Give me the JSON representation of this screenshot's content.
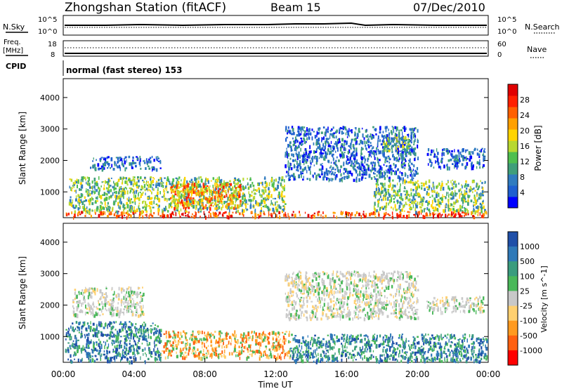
{
  "header": {
    "title": "Zhongshan Station (fitACF)",
    "beam": "Beam 15",
    "date": "07/Dec/2010"
  },
  "status_panels": {
    "nsky_label": "N.Sky",
    "nsky_top": "10^5",
    "nsky_bottom": "10^0",
    "nsearch_label": "N.Search",
    "nsearch_top": "10^5",
    "nsearch_bottom": "10^0",
    "freq_label": "Freq.",
    "freq_unit": "[MHz]",
    "freq_top": "18",
    "freq_bottom": "8",
    "nave_label": "Nave",
    "nave_top": "60",
    "nave_bottom": "0",
    "cpid_label": "CPID",
    "cpid_text": "normal (fast stereo) 153"
  },
  "chart_data": [
    {
      "type": "heatmap",
      "title": "Power",
      "ylabel": "Slant Range [km]",
      "xlabel": "",
      "xlim": [
        0,
        24
      ],
      "ylim": [
        180,
        4600
      ],
      "y_ticks": [
        "1000",
        "2000",
        "3000",
        "4000"
      ],
      "colorbar_label": "Power [dB]",
      "colorbar_ticks": [
        "4",
        "8",
        "12",
        "16",
        "20",
        "24",
        "28"
      ],
      "colorbar_colors": [
        "#0000ff",
        "#1e5fd0",
        "#2f7bbf",
        "#3f9e7a",
        "#4fbf4f",
        "#b8d830",
        "#ffd400",
        "#ffa000",
        "#ff6000",
        "#ff2000",
        "#e00000"
      ],
      "regions": [
        {
          "t0": 0.1,
          "t1": 23.9,
          "r0": 230,
          "r1": 400,
          "level": "high"
        },
        {
          "t0": 0.3,
          "t1": 12.5,
          "r0": 400,
          "r1": 1500,
          "level": "medium"
        },
        {
          "t0": 6.0,
          "t1": 10.0,
          "r0": 500,
          "r1": 1300,
          "level": "peak"
        },
        {
          "t0": 1.5,
          "t1": 5.5,
          "r0": 1750,
          "r1": 2150,
          "level": "low"
        },
        {
          "t0": 12.5,
          "t1": 20.0,
          "r0": 1400,
          "r1": 3100,
          "level": "low"
        },
        {
          "t0": 18.0,
          "t1": 19.5,
          "r0": 2300,
          "r1": 2800,
          "level": "medium"
        },
        {
          "t0": 17.5,
          "t1": 23.8,
          "r0": 400,
          "r1": 1400,
          "level": "medium"
        },
        {
          "t0": 20.5,
          "t1": 23.8,
          "r0": 1800,
          "r1": 2400,
          "level": "low"
        }
      ]
    },
    {
      "type": "heatmap",
      "title": "Velocity",
      "ylabel": "Slant Range [km]",
      "xlabel": "Time UT",
      "xlim": [
        0,
        24
      ],
      "ylim": [
        180,
        4600
      ],
      "y_ticks": [
        "1000",
        "2000",
        "3000",
        "4000"
      ],
      "x_ticks": [
        "00:00",
        "04:00",
        "08:00",
        "12:00",
        "16:00",
        "20:00",
        "00:00"
      ],
      "colorbar_label": "Velocity [m s^-1]",
      "colorbar_ticks": [
        "1000",
        "500",
        "100",
        "25",
        "-25",
        "-100",
        "-500",
        "-1000"
      ],
      "colorbar_colors": [
        "#1f4fa8",
        "#2f79b8",
        "#3a9c7e",
        "#4ab85a",
        "#c8c8c8",
        "#ffd070",
        "#ff9a20",
        "#ff6010",
        "#ff0000"
      ],
      "regions": [
        {
          "t0": 0.1,
          "t1": 5.5,
          "r0": 230,
          "r1": 1500,
          "level": "positive"
        },
        {
          "t0": 5.5,
          "t1": 12.8,
          "r0": 350,
          "r1": 1200,
          "level": "negative"
        },
        {
          "t0": 12.8,
          "t1": 23.9,
          "r0": 230,
          "r1": 1100,
          "level": "positive"
        },
        {
          "t0": 0.5,
          "t1": 4.5,
          "r0": 1700,
          "r1": 2600,
          "level": "ground"
        },
        {
          "t0": 12.5,
          "t1": 20.0,
          "r0": 1600,
          "r1": 3100,
          "level": "ground"
        },
        {
          "t0": 20.5,
          "t1": 23.8,
          "r0": 1800,
          "r1": 2300,
          "level": "ground"
        }
      ]
    }
  ]
}
